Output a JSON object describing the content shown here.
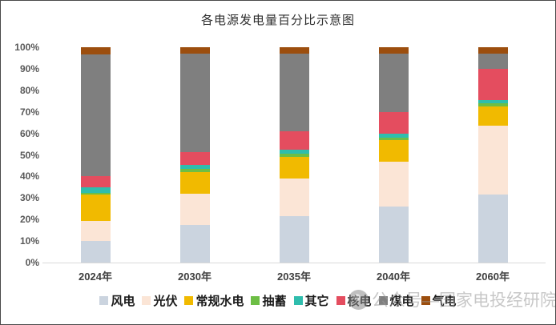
{
  "chart_data": {
    "type": "bar",
    "subtype": "stacked-100-percent",
    "title": "各电源发电量百分比示意图",
    "categories": [
      "2024年",
      "2030年",
      "2035年",
      "2040年",
      "2060年"
    ],
    "series": [
      {
        "name": "风电",
        "color": "#CBD4DF",
        "values": [
          10,
          17.5,
          21.5,
          26,
          31.5
        ]
      },
      {
        "name": "光伏",
        "color": "#FBE5D6",
        "values": [
          9.5,
          14.5,
          17.5,
          21,
          32
        ]
      },
      {
        "name": "常规水电",
        "color": "#F1BA00",
        "values": [
          12,
          10,
          10,
          10,
          9
        ]
      },
      {
        "name": "抽蓄",
        "color": "#6DBE45",
        "values": [
          1,
          1.5,
          1.5,
          1,
          1.5
        ]
      },
      {
        "name": "其它",
        "color": "#2FBDAD",
        "values": [
          2.5,
          2,
          2,
          2,
          1.5
        ]
      },
      {
        "name": "核电",
        "color": "#E44D5F",
        "values": [
          5,
          6,
          8.5,
          10,
          14.5
        ]
      },
      {
        "name": "煤电",
        "color": "#7F7F7F",
        "values": [
          56.5,
          45.5,
          36,
          27,
          7
        ]
      },
      {
        "name": "气电",
        "color": "#9C4E0E",
        "values": [
          3.5,
          3,
          3,
          3,
          3
        ]
      }
    ],
    "y_ticks": [
      "0%",
      "10%",
      "20%",
      "30%",
      "40%",
      "50%",
      "60%",
      "70%",
      "80%",
      "90%",
      "100%"
    ],
    "ylim": [
      0,
      100
    ],
    "grid": false,
    "legend_position": "bottom"
  },
  "watermark": {
    "text": "公众号—国家电投经研院"
  }
}
